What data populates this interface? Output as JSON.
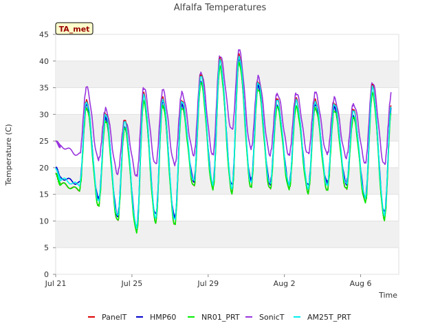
{
  "chart_data": {
    "type": "line",
    "title": "Alfalfa Temperatures",
    "xlabel": "Time",
    "ylabel": "Temperature (C)",
    "badge": "TA_met",
    "x_start": "Jul 21",
    "x_end": "Aug 7 12:00",
    "xlim_days": [
      0,
      18
    ],
    "ylim": [
      0,
      45
    ],
    "yticks": [
      0,
      5,
      10,
      15,
      20,
      25,
      30,
      35,
      40,
      45
    ],
    "xticks": [
      {
        "day": 0,
        "label": "Jul 21"
      },
      {
        "day": 4,
        "label": "Jul 25"
      },
      {
        "day": 8,
        "label": "Jul 29"
      },
      {
        "day": 12,
        "label": "Aug 2"
      },
      {
        "day": 16,
        "label": "Aug 6"
      }
    ],
    "grid": "horizontal bands",
    "legend_position": "bottom",
    "daily_extremes": {
      "dates": [
        "Jul 21",
        "Jul 22",
        "Jul 23",
        "Jul 24",
        "Jul 25",
        "Jul 26",
        "Jul 27",
        "Jul 28",
        "Jul 29",
        "Jul 30",
        "Jul 31",
        "Aug 1",
        "Aug 2",
        "Aug 3",
        "Aug 4",
        "Aug 5",
        "Aug 6",
        "Aug 7"
      ],
      "day_max_C": [
        null,
        32.5,
        30.0,
        28.5,
        33.5,
        33.0,
        32.5,
        37.0,
        40.0,
        41.0,
        36.0,
        32.5,
        32.5,
        32.5,
        32.0,
        30.5,
        35.0,
        32.0
      ],
      "night_min_C": [
        17.5,
        16.5,
        13.5,
        10.5,
        8.5,
        10.5,
        10.0,
        17.0,
        16.5,
        16.0,
        17.0,
        16.5,
        16.5,
        16.0,
        16.5,
        16.5,
        14.0,
        11.0
      ],
      "sonic_min_C": [
        24.0,
        22.5,
        21.5,
        19.0,
        18.5,
        20.5,
        20.5,
        22.5,
        22.5,
        27.0,
        23.5,
        22.5,
        22.5,
        22.5,
        22.5,
        22.0,
        21.0,
        20.5
      ],
      "sonic_max_C": [
        null,
        35.0,
        31.0,
        29.0,
        35.0,
        34.5,
        34.0,
        38.0,
        41.0,
        42.0,
        37.0,
        34.0,
        34.0,
        34.0,
        33.0,
        32.0,
        36.0,
        34.0
      ]
    },
    "series": [
      {
        "name": "PanelT",
        "color": "#dd0000",
        "offset_max": 0.3,
        "offset_min": -0.6
      },
      {
        "name": "HMP60",
        "color": "#0000cc",
        "offset_max": -0.8,
        "offset_min": 0.6
      },
      {
        "name": "NR01_PRT",
        "color": "#00ee00",
        "offset_max": -1.2,
        "offset_min": -0.6
      },
      {
        "name": "SonicT",
        "color": "#9933dd",
        "sonic": true
      },
      {
        "name": "AM25T_PRT",
        "color": "#00eeee",
        "offset_max": 0.0,
        "offset_min": 0.3
      }
    ]
  }
}
